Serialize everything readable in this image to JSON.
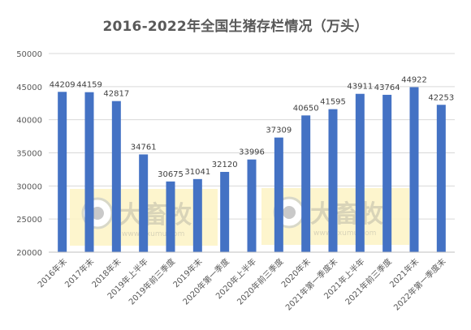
{
  "chart_data": {
    "type": "bar",
    "title": "2016-2022年全国生猪存栏情况（万头）",
    "categories": [
      "2016年末",
      "2017年末",
      "2018年末",
      "2019年上半年",
      "2019年前三季度",
      "2019年末",
      "2020年第一季度",
      "2020年上半年",
      "2020年前三季度",
      "2020年末",
      "2021年第一季度末",
      "2021年上半年",
      "2021年前三季度",
      "2021年末",
      "2022年第一季度末"
    ],
    "values": [
      44209,
      44159,
      42817,
      34761,
      30675,
      31041,
      32120,
      33996,
      37309,
      40650,
      41595,
      43911,
      43764,
      44922,
      42253
    ],
    "ylim": [
      20000,
      50000
    ],
    "yticks": [
      20000,
      25000,
      30000,
      35000,
      40000,
      45000,
      50000
    ],
    "grid": true,
    "legend": "none",
    "bar_color": "#4472C4",
    "xlabel": "",
    "ylabel": "",
    "watermark": {
      "brand": "大畜牧",
      "url": "www.dxumu.com"
    }
  }
}
